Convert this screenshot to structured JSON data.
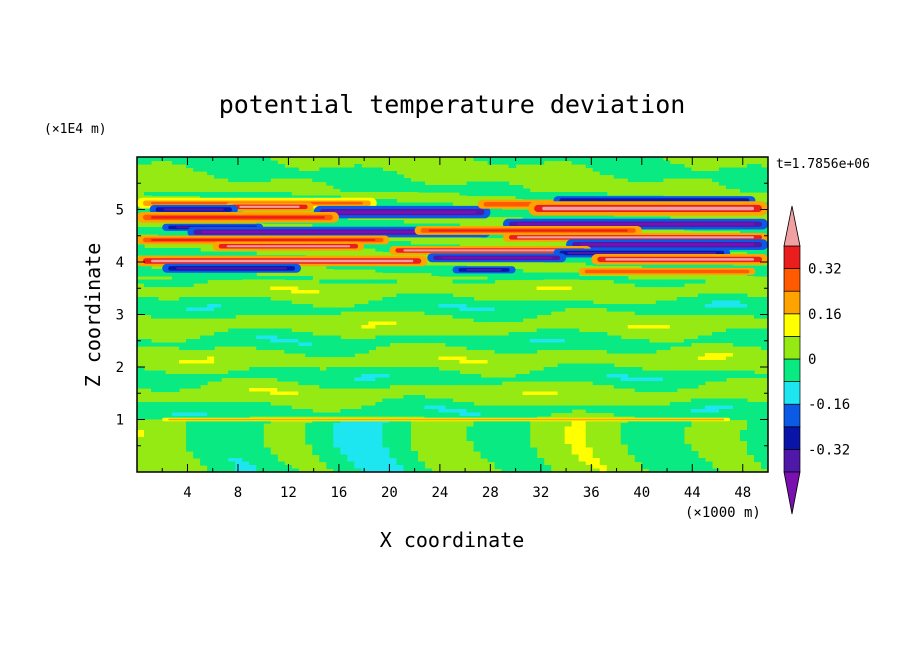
{
  "chart_data": {
    "type": "heatmap",
    "title": "potential temperature deviation",
    "xlabel": "X coordinate",
    "ylabel": "Z coordinate",
    "x_unit": "(×1000 m)",
    "y_unit": "(×1E4 m)",
    "time_label": "t=1.7856e+06",
    "xlim": [
      0,
      50
    ],
    "ylim": [
      0,
      6
    ],
    "x_ticks": [
      "4",
      "8",
      "12",
      "16",
      "20",
      "24",
      "28",
      "32",
      "36",
      "40",
      "44",
      "48"
    ],
    "x_tick_values": [
      4,
      8,
      12,
      16,
      20,
      24,
      28,
      32,
      36,
      40,
      44,
      48
    ],
    "y_ticks": [
      "1",
      "2",
      "3",
      "4",
      "5"
    ],
    "y_tick_values": [
      1,
      2,
      3,
      4,
      5
    ],
    "colorbar": {
      "levels": [
        -0.4,
        -0.32,
        -0.24,
        -0.16,
        -0.08,
        0,
        0.08,
        0.16,
        0.24,
        0.32,
        0.4
      ],
      "labels": [
        "0.32",
        "0.16",
        "0",
        "-0.16",
        "-0.32"
      ],
      "label_values": [
        0.32,
        0.16,
        0,
        -0.16,
        -0.32
      ],
      "colors": [
        "#7a10b0",
        "#5018a8",
        "#0a14a8",
        "#0a5ae6",
        "#1ee6f0",
        "#0aea82",
        "#96ea14",
        "#ffff00",
        "#ffa300",
        "#ff5a00",
        "#eb1e1e",
        "#f0a0a0"
      ],
      "extend": "both"
    },
    "bands": [
      {
        "z": 5.12,
        "x": [
          0,
          19
        ],
        "th": 0.06,
        "v": 0.26
      },
      {
        "z": 5.05,
        "x": [
          7,
          14
        ],
        "th": 0.05,
        "v": 0.4
      },
      {
        "z": 5.0,
        "x": [
          1,
          8
        ],
        "th": 0.05,
        "v": -0.38
      },
      {
        "z": 4.95,
        "x": [
          14,
          28
        ],
        "th": 0.07,
        "v": -0.42
      },
      {
        "z": 5.1,
        "x": [
          27,
          46
        ],
        "th": 0.05,
        "v": 0.3
      },
      {
        "z": 5.17,
        "x": [
          33,
          49
        ],
        "th": 0.05,
        "v": -0.3
      },
      {
        "z": 5.02,
        "x": [
          31,
          50
        ],
        "th": 0.08,
        "v": 0.42
      },
      {
        "z": 4.85,
        "x": [
          0,
          16
        ],
        "th": 0.06,
        "v": 0.36
      },
      {
        "z": 4.72,
        "x": [
          29,
          50
        ],
        "th": 0.06,
        "v": -0.42
      },
      {
        "z": 4.66,
        "x": [
          2,
          10
        ],
        "th": 0.04,
        "v": -0.36
      },
      {
        "z": 4.57,
        "x": [
          4,
          28
        ],
        "th": 0.06,
        "v": -0.42
      },
      {
        "z": 4.6,
        "x": [
          22,
          40
        ],
        "th": 0.05,
        "v": 0.32
      },
      {
        "z": 4.47,
        "x": [
          29,
          50
        ],
        "th": 0.05,
        "v": 0.42
      },
      {
        "z": 4.42,
        "x": [
          0,
          20
        ],
        "th": 0.05,
        "v": 0.38
      },
      {
        "z": 4.33,
        "x": [
          34,
          50
        ],
        "th": 0.06,
        "v": -0.42
      },
      {
        "z": 4.3,
        "x": [
          6,
          18
        ],
        "th": 0.05,
        "v": 0.42
      },
      {
        "z": 4.22,
        "x": [
          20,
          36
        ],
        "th": 0.05,
        "v": 0.4
      },
      {
        "z": 4.17,
        "x": [
          33,
          47
        ],
        "th": 0.05,
        "v": -0.34
      },
      {
        "z": 4.08,
        "x": [
          23,
          34
        ],
        "th": 0.05,
        "v": -0.42
      },
      {
        "z": 4.02,
        "x": [
          0,
          23
        ],
        "th": 0.06,
        "v": 0.42
      },
      {
        "z": 4.05,
        "x": [
          36,
          50
        ],
        "th": 0.06,
        "v": 0.4
      },
      {
        "z": 3.88,
        "x": [
          2,
          13
        ],
        "th": 0.05,
        "v": -0.36
      },
      {
        "z": 3.85,
        "x": [
          25,
          30
        ],
        "th": 0.04,
        "v": -0.36
      },
      {
        "z": 3.82,
        "x": [
          35,
          49
        ],
        "th": 0.04,
        "v": 0.3
      },
      {
        "z": 1.0,
        "x": [
          2,
          47
        ],
        "th": 0.02,
        "v": 0.22
      }
    ]
  }
}
